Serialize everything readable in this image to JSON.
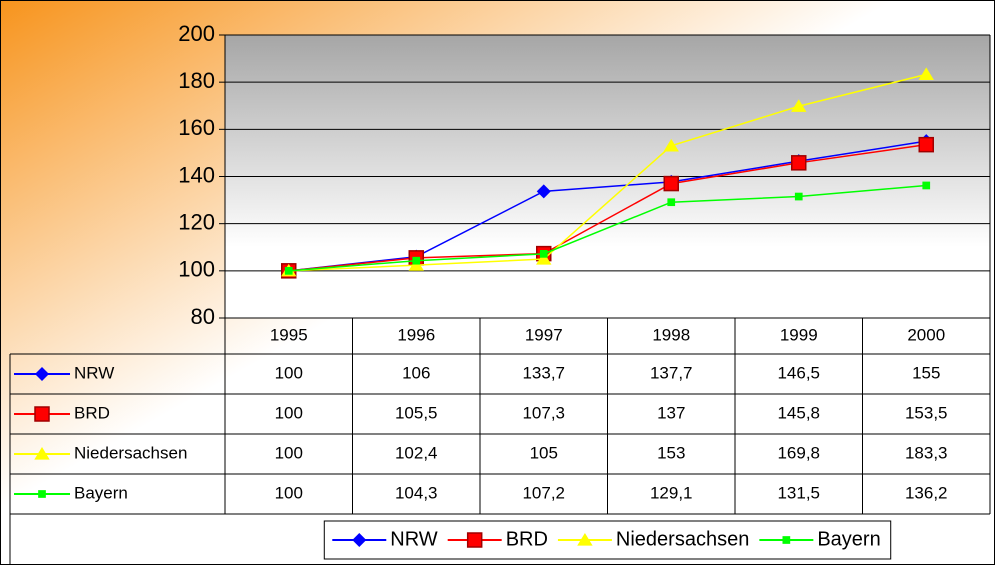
{
  "chart_data": {
    "type": "line",
    "categories": [
      "1995",
      "1996",
      "1997",
      "1998",
      "1999",
      "2000"
    ],
    "series": [
      {
        "name": "NRW",
        "color": "#0000ff",
        "marker": "diamond",
        "values": [
          100,
          106,
          133.7,
          137.7,
          146.5,
          155
        ],
        "value_labels": [
          "100",
          "106",
          "133,7",
          "137,7",
          "146,5",
          "155"
        ]
      },
      {
        "name": "BRD",
        "color": "#ff0000",
        "marker": "square",
        "values": [
          100,
          105.5,
          107.3,
          137,
          145.8,
          153.5
        ],
        "value_labels": [
          "100",
          "105,5",
          "107,3",
          "137",
          "145,8",
          "153,5"
        ]
      },
      {
        "name": "Niedersachsen",
        "color": "#ffff00",
        "marker": "triangle",
        "values": [
          100,
          102.4,
          105,
          153,
          169.8,
          183.3
        ],
        "value_labels": [
          "100",
          "102,4",
          "105",
          "153",
          "169,8",
          "183,3"
        ]
      },
      {
        "name": "Bayern",
        "color": "#00ff00",
        "marker": "small-square",
        "values": [
          100,
          104.3,
          107.2,
          129.1,
          131.5,
          136.2
        ],
        "value_labels": [
          "100",
          "104,3",
          "107,2",
          "129,1",
          "131,5",
          "136,2"
        ]
      }
    ],
    "ylim": [
      80,
      200
    ],
    "yticks": [
      80,
      100,
      120,
      140,
      160,
      180,
      200
    ],
    "grid": true,
    "legend": "bottom"
  }
}
